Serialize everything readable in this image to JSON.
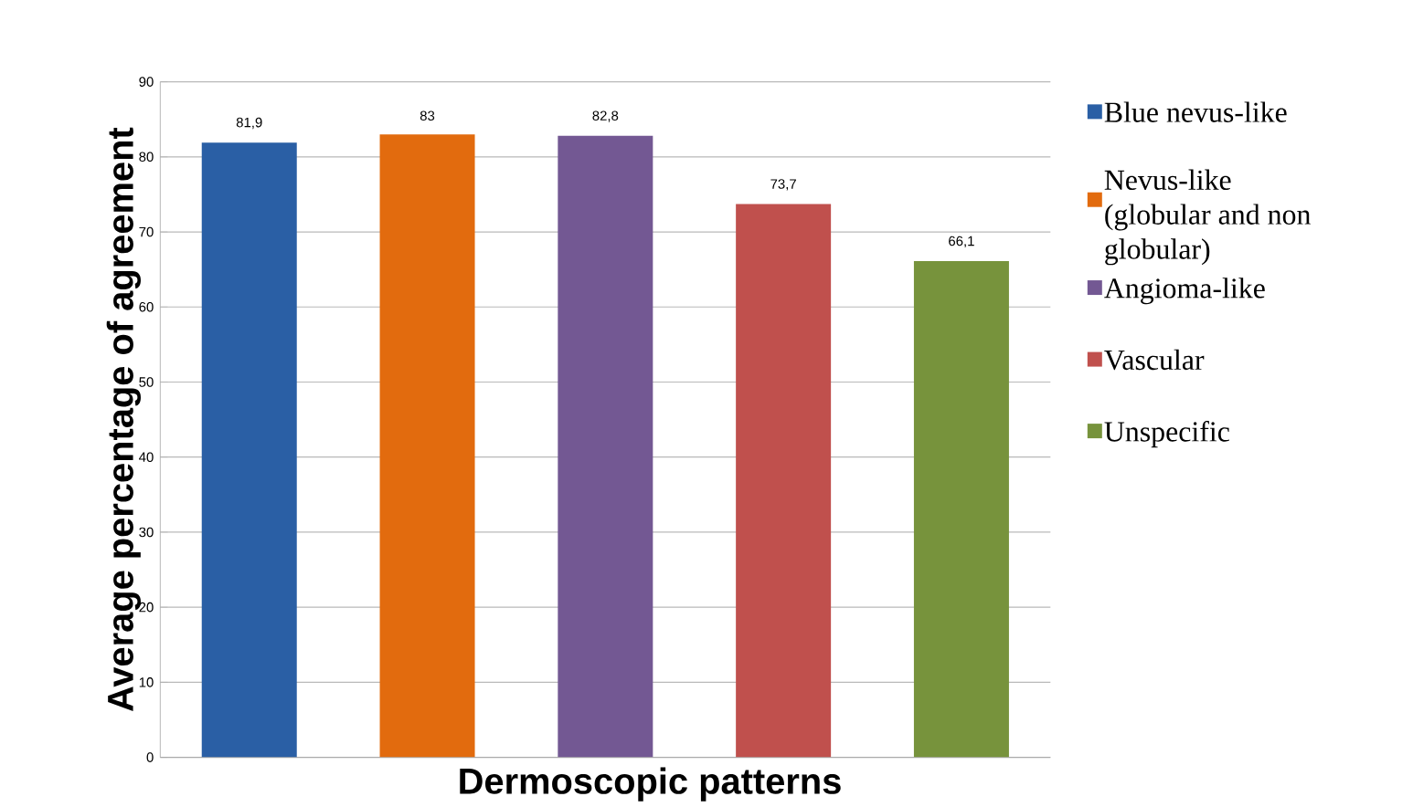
{
  "chart_data": {
    "type": "bar",
    "xlabel": "Dermoscopic patterns",
    "ylabel": "Average percentage of agreement",
    "categories": [
      null,
      null,
      null,
      null,
      null
    ],
    "series": [
      {
        "name": "Blue nevus-like",
        "color": "#2a5fa5",
        "values": [
          81.9,
          null,
          null,
          null,
          null
        ],
        "value_labels": [
          "81,9",
          null,
          null,
          null,
          null
        ]
      },
      {
        "name": "Nevus-like (globular and non globular)",
        "color": "#e26b0e",
        "values": [
          null,
          83,
          null,
          null,
          null
        ],
        "value_labels": [
          null,
          "83",
          null,
          null,
          null
        ]
      },
      {
        "name": "Angioma-like",
        "color": "#735893",
        "values": [
          null,
          null,
          82.8,
          null,
          null
        ],
        "value_labels": [
          null,
          null,
          "82,8",
          null,
          null
        ]
      },
      {
        "name": "Vascular",
        "color": "#c0504d",
        "values": [
          null,
          null,
          null,
          73.7,
          null
        ],
        "value_labels": [
          null,
          null,
          null,
          "73,7",
          null
        ]
      },
      {
        "name": "Unspecific",
        "color": "#77933c",
        "values": [
          null,
          null,
          null,
          null,
          66.1
        ],
        "value_labels": [
          null,
          null,
          null,
          null,
          "66,1"
        ]
      }
    ],
    "ylim": [
      0,
      90
    ],
    "yticks": [
      0,
      10,
      20,
      30,
      40,
      50,
      60,
      70,
      80,
      90
    ],
    "grid": "y",
    "legend": "right",
    "tick_labels": "y"
  }
}
